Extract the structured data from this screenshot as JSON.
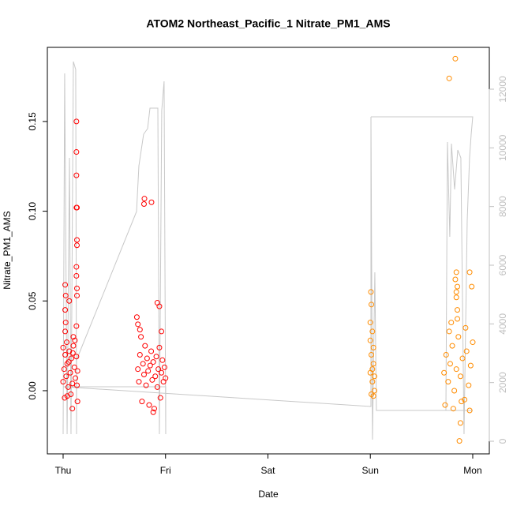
{
  "chart_data": {
    "type": "scatter",
    "title": "ATOM2 Northeast_Pacific_1 Nitrate_PM1_AMS",
    "xlabel": "Date",
    "ylabel": "Nitrate_PM1_AMS",
    "xlim": [
      -0.154,
      4.162
    ],
    "ylim": [
      -0.0352,
      0.1913
    ],
    "y2lim": [
      -430,
      13426
    ],
    "xticks": [
      {
        "value": 0,
        "label": "Thu"
      },
      {
        "value": 1,
        "label": "Fri"
      },
      {
        "value": 2,
        "label": "Sat"
      },
      {
        "value": 3,
        "label": "Sun"
      },
      {
        "value": 4,
        "label": "Mon"
      }
    ],
    "yticks": [
      {
        "value": 0,
        "label": "0.00"
      },
      0.05,
      {
        "value": 0.1,
        "label": "0.10"
      },
      0.15
    ],
    "y2ticks": [
      0,
      2000,
      4000,
      6000,
      8000,
      10000,
      12000
    ],
    "y2_color": "#bfbfbf",
    "series": [
      {
        "color": "#ff0000",
        "x": [
          0.0,
          0.01,
          0.02,
          0.03,
          0.04,
          0.05,
          0.06,
          0.07,
          0.08,
          0.09,
          0.1,
          0.11,
          0.12,
          0.13,
          0.14,
          0.015,
          0.035,
          0.055,
          0.075,
          0.095,
          0.115,
          0.135,
          0.02,
          0.025,
          0.02,
          0.02,
          0.025,
          0.06,
          0.09,
          0.13,
          0.13,
          0.13,
          0.13,
          0.135,
          0.135,
          0.135,
          0.13,
          0.13,
          0.135,
          0.135,
          0.13,
          0.14,
          0.04,
          0.0,
          0.1,
          0.72,
          0.73,
          0.74,
          0.75,
          0.76,
          0.77,
          0.78,
          0.79,
          0.8,
          0.81,
          0.82,
          0.83,
          0.84,
          0.85,
          0.86,
          0.87,
          0.88,
          0.89,
          0.9,
          0.91,
          0.92,
          0.93,
          0.94,
          0.95,
          0.96,
          0.97,
          0.98,
          0.99,
          1.0,
          0.794,
          0.79,
          0.863,
          0.92,
          0.94,
          0.73,
          0.75,
          0.96,
          0.88
        ],
        "values": [
          0.005,
          0.012,
          0.02,
          0.008,
          0.015,
          0.002,
          0.022,
          0.01,
          0.018,
          0.004,
          0.025,
          0.013,
          0.007,
          0.019,
          0.011,
          -0.004,
          0.027,
          0.016,
          -0.002,
          0.021,
          0.028,
          0.003,
          0.033,
          0.038,
          0.045,
          0.059,
          0.053,
          0.05,
          -0.01,
          0.15,
          0.133,
          0.12,
          0.102,
          0.102,
          0.084,
          0.081,
          0.069,
          0.064,
          0.057,
          0.053,
          0.036,
          -0.006,
          -0.003,
          0.024,
          0.03,
          0.041,
          0.012,
          0.005,
          0.02,
          0.03,
          -0.006,
          0.015,
          0.009,
          0.025,
          0.003,
          0.018,
          0.011,
          -0.008,
          0.014,
          0.022,
          0.006,
          0.016,
          -0.01,
          0.008,
          0.019,
          0.002,
          0.012,
          0.024,
          -0.004,
          0.01,
          0.017,
          0.005,
          0.013,
          0.007,
          0.107,
          0.104,
          0.105,
          0.049,
          0.047,
          0.037,
          0.034,
          0.033,
          -0.012
        ]
      },
      {
        "color": "#ff8c00",
        "x": [
          3.0,
          3.01,
          3.02,
          3.03,
          3.04,
          3.0,
          3.01,
          3.02,
          3.03,
          3.04,
          3.006,
          3.01,
          3.0,
          3.02,
          3.03,
          3.72,
          3.74,
          3.76,
          3.78,
          3.8,
          3.82,
          3.84,
          3.86,
          3.88,
          3.9,
          3.92,
          3.94,
          3.96,
          3.98,
          4.0,
          3.73,
          3.77,
          3.81,
          3.85,
          3.89,
          3.93,
          3.97,
          3.83,
          3.77,
          3.84,
          3.83,
          3.85,
          3.84,
          3.97,
          3.99,
          3.84,
          3.85,
          3.87,
          3.79,
          3.88
        ],
        "values": [
          0.01,
          0.02,
          0.005,
          0.015,
          0.0,
          0.028,
          -0.002,
          0.012,
          0.024,
          0.008,
          0.055,
          0.048,
          0.038,
          0.033,
          -0.003,
          0.01,
          0.02,
          0.005,
          0.015,
          0.025,
          0.0,
          0.012,
          0.03,
          0.008,
          0.018,
          -0.005,
          0.022,
          0.003,
          0.014,
          0.027,
          -0.008,
          0.033,
          -0.01,
          0.04,
          -0.006,
          0.035,
          -0.011,
          0.185,
          0.174,
          0.066,
          0.062,
          0.058,
          0.055,
          0.066,
          0.058,
          0.052,
          0.045,
          -0.028,
          0.038,
          -0.018
        ]
      },
      {
        "type": "line",
        "axis": "y2",
        "color": "#c8c8c8",
        "x": [
          0,
          0.015,
          0.039,
          0.062,
          0.077,
          0.1,
          0.123,
          0.131,
          0.131,
          0.717,
          0.74,
          0.786,
          0.825,
          0.848,
          0.925,
          0.94,
          0.963,
          0.986,
          1.002,
          1.002,
          0,
          3.006,
          3.006,
          3.021,
          3.044,
          3.059,
          4.0,
          3.738,
          3.753,
          3.776,
          3.792,
          3.823,
          3.854,
          3.884,
          3.915,
          3.946,
          3.969,
          3.985,
          4.0,
          3.006
        ],
        "values": [
          242,
          12538,
          242,
          9659,
          242,
          12942,
          12673,
          242,
          2771,
          7830,
          9390,
          10466,
          10655,
          11354,
          11354,
          242,
          11274,
          12269,
          242,
          1857,
          1857,
          1184,
          11058,
          54,
          5758,
          1049,
          1049,
          1049,
          10197,
          6969,
          10144,
          8583,
          9928,
          9659,
          242,
          7507,
          9659,
          10466,
          11058,
          11058
        ]
      }
    ]
  }
}
